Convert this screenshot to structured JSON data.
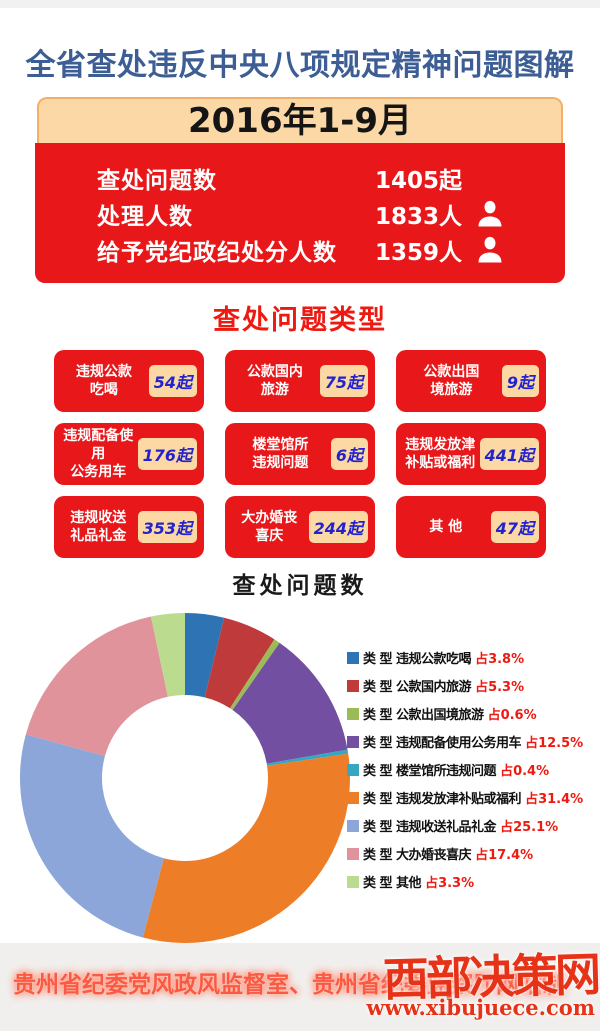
{
  "page": {
    "title": "全省查处违反中央八项规定精神问题图解",
    "period": "2016年1-9月"
  },
  "stats": {
    "rows": [
      {
        "label": "查处问题数",
        "value": "1405起"
      },
      {
        "label": "处理人数",
        "value": "1833人"
      },
      {
        "label": "给予党纪政纪处分人数",
        "value": "1359人"
      }
    ]
  },
  "types": {
    "title": "查处问题类型",
    "unit_suffix": "起",
    "items": [
      {
        "line1": "违规公款",
        "line2": "吃喝",
        "count": "54起"
      },
      {
        "line1": "公款国内",
        "line2": "旅游",
        "count": "75起"
      },
      {
        "line1": "公款出国",
        "line2": "境旅游",
        "count": "9起"
      },
      {
        "line1": "违规配备使用",
        "line2": "公务用车",
        "count": "176起"
      },
      {
        "line1": "楼堂馆所",
        "line2": "违规问题",
        "count": "6起"
      },
      {
        "line1": "违规发放津",
        "line2": "补贴或福利",
        "count": "441起"
      },
      {
        "line1": "违规收送",
        "line2": "礼品礼金",
        "count": "353起"
      },
      {
        "line1": "大办婚丧",
        "line2": "喜庆",
        "count": "244起"
      },
      {
        "line1": "其 他",
        "line2": "",
        "count": "47起"
      }
    ]
  },
  "chart_data": {
    "type": "pie",
    "subtype": "donut",
    "title": "查处问题数",
    "start_angle_deg": -90,
    "direction": "clockwise",
    "inner_radius_ratio": 0.5,
    "legend_position": "right",
    "categories": [
      "违规公款吃喝",
      "公款国内旅游",
      "公款出国境旅游",
      "违规配备使用公务用车",
      "楼堂馆所违规问题",
      "违规发放津补贴或福利",
      "违规收送礼品礼金",
      "大办婚丧喜庆",
      "其他"
    ],
    "values": [
      3.8,
      5.3,
      0.6,
      12.5,
      0.4,
      31.4,
      25.1,
      17.4,
      3.3
    ],
    "unit": "%",
    "colors": [
      "#2e74b5",
      "#bf3b3b",
      "#9bbb59",
      "#724fa0",
      "#35a7c0",
      "#ee7d28",
      "#8ca6d9",
      "#e0939b",
      "#bbdb8f"
    ],
    "legend": [
      {
        "label": "类 型 违规公款吃喝",
        "percent": "占3.8%"
      },
      {
        "label": "类 型 公款国内旅游",
        "percent": "占5.3%"
      },
      {
        "label": "类 型 公款出国境旅游",
        "percent": "占0.6%"
      },
      {
        "label": "类 型 违规配备使用公务用车",
        "percent": "占12.5%"
      },
      {
        "label": "类 型 楼堂馆所违规问题",
        "percent": "占0.4%"
      },
      {
        "label": "类 型 违规发放津补贴或福利",
        "percent": "占31.4%"
      },
      {
        "label": "类 型 违规收送礼品礼金",
        "percent": "占25.1%"
      },
      {
        "label": "类 型 大办婚丧喜庆",
        "percent": "占17.4%"
      },
      {
        "label": "类 型 其他",
        "percent": "占3.3%"
      }
    ]
  },
  "footer": {
    "credit": "贵州省纪委党风政风监督室、贵州省纪委监察厅网站制",
    "watermark_name": "西部决策网",
    "watermark_url": "www.xibujuece.com"
  },
  "colors": {
    "accent_red": "#e8171a",
    "band_peach": "#fbd8a6",
    "title_blue": "#3d5e94",
    "badge_text_blue": "#2323cd",
    "percent_red": "#ed1a11"
  }
}
